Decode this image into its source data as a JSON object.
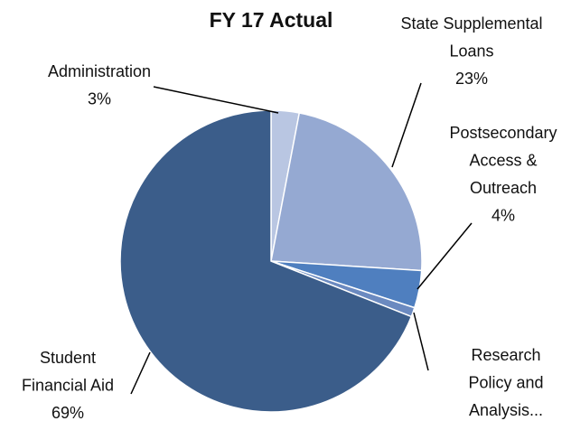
{
  "chart_data": {
    "type": "pie",
    "title": "FY 17 Actual",
    "categories": [
      [
        "Administration"
      ],
      [
        "State Supplemental",
        "Loans"
      ],
      [
        "Postsecondary",
        "Access &",
        "Outreach"
      ],
      [
        "Research",
        "Policy and",
        "Analysis..."
      ],
      [
        "Student",
        "Financial Aid"
      ]
    ],
    "values": [
      3,
      23,
      4,
      1,
      69
    ],
    "value_labels": [
      "3%",
      "23%",
      "4%",
      null,
      "69%"
    ],
    "colors": [
      "#b9c6e2",
      "#95a9d2",
      "#4f7fbf",
      "#6b8ac0",
      "#3b5d8a"
    ]
  }
}
